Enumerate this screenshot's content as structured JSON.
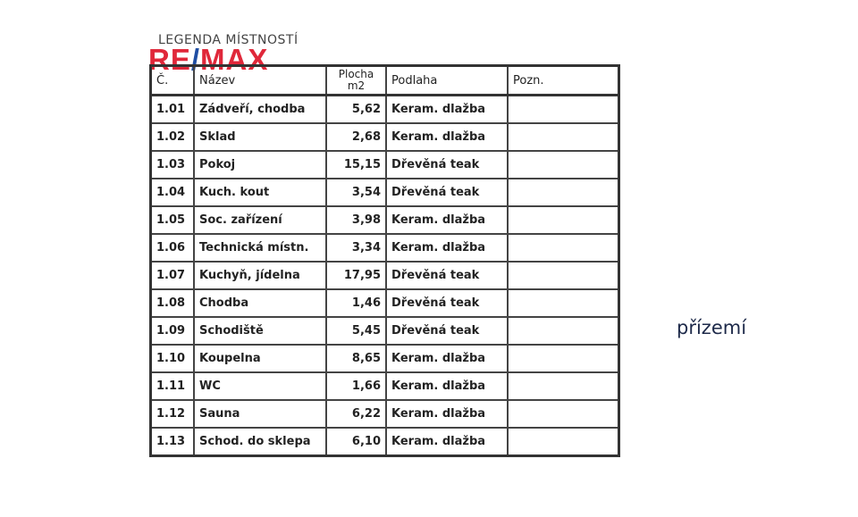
{
  "legend_title": "LEGENDA MÍSTNOSTÍ",
  "logo": {
    "text": "RE/MAX",
    "colors": {
      "red": "#e0283a",
      "blue": "#1f4ea3"
    }
  },
  "table": {
    "headers": [
      "Č.",
      "Název",
      "Plocha m2",
      "Podlaha",
      "Pozn."
    ],
    "rows": [
      [
        "1.01",
        "Zádveří, chodba",
        "5,62",
        "Keram. dlažba",
        ""
      ],
      [
        "1.02",
        "Sklad",
        "2,68",
        "Keram. dlažba",
        ""
      ],
      [
        "1.03",
        "Pokoj",
        "15,15",
        "Dřevěná teak",
        ""
      ],
      [
        "1.04",
        "Kuch. kout",
        "3,54",
        "Dřevěná teak",
        ""
      ],
      [
        "1.05",
        "Soc. zařízení",
        "3,98",
        "Keram. dlažba",
        ""
      ],
      [
        "1.06",
        "Technická místn.",
        "3,34",
        "Keram. dlažba",
        ""
      ],
      [
        "1.07",
        "Kuchyň, jídelna",
        "17,95",
        "Dřevěná teak",
        ""
      ],
      [
        "1.08",
        "Chodba",
        "1,46",
        "Dřevěná teak",
        ""
      ],
      [
        "1.09",
        "Schodiště",
        "5,45",
        "Dřevěná teak",
        ""
      ],
      [
        "1.10",
        "Koupelna",
        "8,65",
        "Keram. dlažba",
        ""
      ],
      [
        "1.11",
        "WC",
        "1,66",
        "Keram. dlažba",
        ""
      ],
      [
        "1.12",
        "Sauna",
        "6,22",
        "Keram. dlažba",
        ""
      ],
      [
        "1.13",
        "Schod. do sklepa",
        "6,10",
        "Keram. dlažba",
        ""
      ]
    ]
  },
  "floor_label": "přízemí"
}
